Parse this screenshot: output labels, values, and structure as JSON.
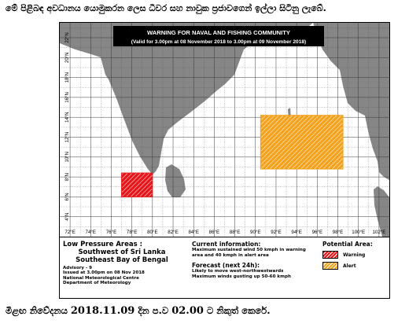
{
  "header_text": "මේ පිළිබඳ අවධානය යොමුකරන ලෙස ධීවර සහ නාවුක ප්‍රජාවගෙන් ඉල්ලා සිටිනු ලැබේ.",
  "map": {
    "title": "WARNING FOR NAVAL AND FISHING COMMUNITY",
    "validity": "(Valid for 3.00pm at 08 November 2018 to 3.00pm at 09 November 2018)",
    "lon_labels": [
      "72°E",
      "74°E",
      "76°E",
      "78°E",
      "80°E",
      "82°E",
      "84°E",
      "86°E",
      "88°E",
      "90°E",
      "92°E",
      "94°E",
      "96°E",
      "98°E",
      "100°E",
      "102°E"
    ],
    "lat_labels": [
      "22°N",
      "20°N",
      "18°N",
      "16°N",
      "14°N",
      "12°N",
      "10°N",
      "8°N",
      "6°N",
      "4°N"
    ],
    "lon_range": [
      71,
      103
    ],
    "lat_range": [
      2,
      23.5
    ],
    "colors": {
      "land": "#868686",
      "sea": "#ffffff",
      "grid": "#3a3a3a",
      "title_bg": "#000000",
      "warning": "#e8161b",
      "alert": "#f3a21d"
    },
    "areas": [
      {
        "kind": "warning",
        "lon": [
          77,
          80
        ],
        "lat": [
          6,
          8.4
        ]
      },
      {
        "kind": "alert",
        "lon": [
          90.5,
          98.5
        ],
        "lat": [
          8.8,
          14.2
        ]
      }
    ]
  },
  "info": {
    "low_pressure_title": "Low Pressure Areas :",
    "areas": [
      "Southwest of Sri Lanka",
      "Southeast Bay of Bengal"
    ],
    "advisory": "Advisory - 9",
    "issued": "Issued at 3.00pm on 08 Nov 2018",
    "org1": "National Meteorological Centre",
    "org2": "Department of Meteorology",
    "current_title": "Current information:",
    "current_text": "Maximum sustained wind 50 kmph in warning area and 40 kmph in alert area",
    "forecast_title": "Forecast (next 24h):",
    "forecast_text1": "Likely to move west-northwestwards",
    "forecast_text2": "Maximum winds gusting up 50-60 kmph",
    "potential_title": "Potential Area:",
    "legend_warning": "Warning",
    "legend_alert": "Alert"
  },
  "footer": {
    "prefix": "මීළඟ නිවේදනය",
    "date": "2018.11.09",
    "middle": "දින ප.ව",
    "time": "02.00",
    "suffix": "ට නිකුත් කෙරේ."
  }
}
